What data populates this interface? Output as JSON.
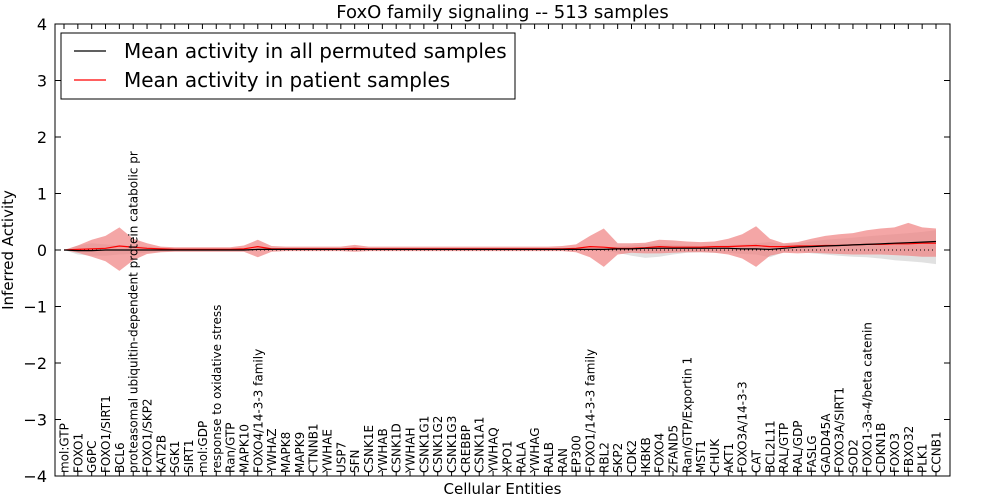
{
  "chart_data": {
    "type": "line",
    "title": "FoxO family signaling -- 513 samples",
    "xlabel": "Cellular Entities",
    "ylabel": "Inferred Activity",
    "ylim": [
      -4,
      4
    ],
    "yticks": [
      4,
      3,
      2,
      1,
      0,
      -1,
      -2,
      -3,
      -4
    ],
    "ytick_labels": [
      "4",
      "3",
      "2",
      "1",
      "0",
      "−1",
      "−2",
      "−3",
      "−4"
    ],
    "grid": false,
    "legend_position": "top-left",
    "categories": [
      "mol:GTP",
      "FOXO1",
      "G6PC",
      "FOXO1/SIRT1",
      "BCL6",
      "proteasomal ubiquitin-dependent protein catabolic pr",
      "FOXO1/SKP2",
      "KAT2B",
      "SGK1",
      "SIRT1",
      "mol:GDP",
      "response to oxidative stress",
      "Ran/GTP",
      "MAPK10",
      "FOXO4/14-3-3 family",
      "YWHAZ",
      "MAPK8",
      "MAPK9",
      "CTNNB1",
      "YWHAE",
      "USP7",
      "SFN",
      "CSNK1E",
      "YWHAB",
      "CSNK1D",
      "YWHAH",
      "CSNK1G1",
      "CSNK1G2",
      "CSNK1G3",
      "CREBBP",
      "CSNK1A1",
      "YWHAQ",
      "XPO1",
      "RALA",
      "YWHAG",
      "RALB",
      "RAN",
      "EP300",
      "FOXO1/14-3-3 family",
      "RBL2",
      "SKP2",
      "CDK2",
      "IKBKB",
      "FOXO4",
      "ZFAND5",
      "Ran/GTP/Exportin 1",
      "MST1",
      "CHUK",
      "AKT1",
      "FOXO3A/14-3-3",
      "CAT",
      "BCL2L11",
      "RAL/GTP",
      "RAL/GDP",
      "FASLG",
      "GADD45A",
      "FOXO3A/SIRT1",
      "SOD2",
      "FOXO1-3a-4/beta catenin",
      "CDKN1B",
      "FOXO3",
      "FBXO32",
      "PLK1",
      "CCNB1"
    ],
    "series": [
      {
        "name": "Mean activity in all permuted samples",
        "color": "#000000",
        "values": [
          0,
          -0.01,
          -0.01,
          0,
          0,
          0,
          0,
          0,
          0,
          0,
          0,
          0,
          0,
          0,
          0.01,
          0.01,
          0.01,
          0.01,
          0.01,
          0.01,
          0.01,
          0.01,
          0.01,
          0.01,
          0.01,
          0.01,
          0.01,
          0.01,
          0.01,
          0.01,
          0.01,
          0.01,
          0.01,
          0.01,
          0.01,
          0.01,
          0.01,
          0.01,
          0.01,
          0.01,
          0.02,
          0.02,
          0.03,
          0.03,
          0.03,
          0.03,
          0.03,
          0.03,
          0.03,
          0.02,
          0.02,
          0.01,
          0.03,
          0.05,
          0.06,
          0.07,
          0.08,
          0.09,
          0.1,
          0.11,
          0.12,
          0.13,
          0.14,
          0.15
        ],
        "band_lower": [
          0,
          -0.08,
          -0.1,
          -0.1,
          -0.08,
          -0.07,
          -0.05,
          -0.03,
          -0.02,
          -0.02,
          -0.02,
          -0.02,
          -0.02,
          -0.02,
          -0.01,
          -0.01,
          -0.01,
          -0.01,
          -0.01,
          -0.01,
          -0.01,
          -0.01,
          -0.01,
          -0.01,
          -0.01,
          -0.01,
          -0.01,
          -0.01,
          -0.01,
          -0.01,
          -0.01,
          -0.01,
          -0.01,
          -0.01,
          -0.01,
          -0.01,
          -0.01,
          -0.01,
          -0.01,
          -0.02,
          -0.05,
          -0.1,
          -0.14,
          -0.12,
          -0.08,
          -0.05,
          -0.04,
          -0.05,
          -0.05,
          -0.07,
          -0.08,
          -0.13,
          -0.04,
          -0.02,
          -0.06,
          -0.08,
          -0.1,
          -0.12,
          -0.13,
          -0.15,
          -0.18,
          -0.2,
          -0.22,
          -0.25
        ],
        "band_upper": [
          0,
          0.08,
          0.12,
          0.1,
          0.08,
          0.07,
          0.06,
          0.04,
          0.03,
          0.03,
          0.03,
          0.03,
          0.03,
          0.03,
          0.03,
          0.03,
          0.03,
          0.03,
          0.03,
          0.03,
          0.03,
          0.03,
          0.03,
          0.03,
          0.03,
          0.03,
          0.03,
          0.03,
          0.03,
          0.03,
          0.03,
          0.03,
          0.03,
          0.03,
          0.03,
          0.03,
          0.03,
          0.03,
          0.03,
          0.04,
          0.06,
          0.08,
          0.1,
          0.1,
          0.09,
          0.08,
          0.07,
          0.08,
          0.09,
          0.1,
          0.12,
          0.14,
          0.1,
          0.11,
          0.15,
          0.18,
          0.2,
          0.22,
          0.24,
          0.26,
          0.28,
          0.3,
          0.32,
          0.35
        ]
      },
      {
        "name": "Mean activity in patient samples",
        "color": "#ff0000",
        "values": [
          0,
          0.01,
          0.02,
          0.03,
          0.07,
          0.05,
          0.03,
          0.02,
          0.01,
          0.01,
          0.01,
          0.01,
          0.01,
          0.02,
          0.06,
          0.02,
          0.02,
          0.02,
          0.02,
          0.02,
          0.02,
          0.03,
          0.02,
          0.02,
          0.02,
          0.02,
          0.02,
          0.02,
          0.02,
          0.02,
          0.02,
          0.02,
          0.02,
          0.02,
          0.02,
          0.02,
          0.02,
          0.03,
          0.06,
          0.05,
          0.03,
          0.03,
          0.04,
          0.06,
          0.05,
          0.05,
          0.05,
          0.06,
          0.06,
          0.07,
          0.08,
          0.06,
          0.06,
          0.07,
          0.07,
          0.08,
          0.08,
          0.09,
          0.1,
          0.1,
          0.11,
          0.11,
          0.12,
          0.12
        ],
        "band_lower": [
          0,
          -0.05,
          -0.12,
          -0.2,
          -0.37,
          -0.18,
          -0.07,
          -0.04,
          -0.03,
          -0.03,
          -0.03,
          -0.03,
          -0.03,
          -0.03,
          -0.13,
          -0.03,
          -0.02,
          -0.02,
          -0.02,
          -0.02,
          -0.02,
          -0.03,
          -0.02,
          -0.02,
          -0.02,
          -0.02,
          -0.02,
          -0.02,
          -0.02,
          -0.02,
          -0.02,
          -0.02,
          -0.02,
          -0.02,
          -0.02,
          -0.02,
          -0.02,
          -0.04,
          -0.13,
          -0.3,
          -0.08,
          -0.05,
          -0.06,
          -0.06,
          -0.05,
          -0.04,
          -0.04,
          -0.05,
          -0.08,
          -0.15,
          -0.3,
          -0.1,
          -0.05,
          -0.06,
          -0.05,
          -0.06,
          -0.07,
          -0.08,
          -0.08,
          -0.08,
          -0.09,
          -0.1,
          -0.12,
          -0.12
        ],
        "band_upper": [
          0,
          0.08,
          0.18,
          0.25,
          0.4,
          0.2,
          0.12,
          0.06,
          0.05,
          0.05,
          0.05,
          0.05,
          0.05,
          0.08,
          0.18,
          0.07,
          0.06,
          0.06,
          0.06,
          0.06,
          0.06,
          0.09,
          0.06,
          0.06,
          0.06,
          0.06,
          0.06,
          0.06,
          0.06,
          0.06,
          0.06,
          0.06,
          0.06,
          0.06,
          0.06,
          0.06,
          0.07,
          0.1,
          0.25,
          0.38,
          0.12,
          0.12,
          0.13,
          0.18,
          0.17,
          0.15,
          0.14,
          0.15,
          0.2,
          0.28,
          0.42,
          0.2,
          0.12,
          0.14,
          0.2,
          0.25,
          0.28,
          0.3,
          0.35,
          0.38,
          0.4,
          0.48,
          0.4,
          0.38
        ]
      }
    ],
    "baseline": {
      "value": 0,
      "style": "dotted",
      "color": "#000000"
    },
    "band_colors": {
      "permuted": "#c8c8c8",
      "patient": "#f08080"
    }
  }
}
